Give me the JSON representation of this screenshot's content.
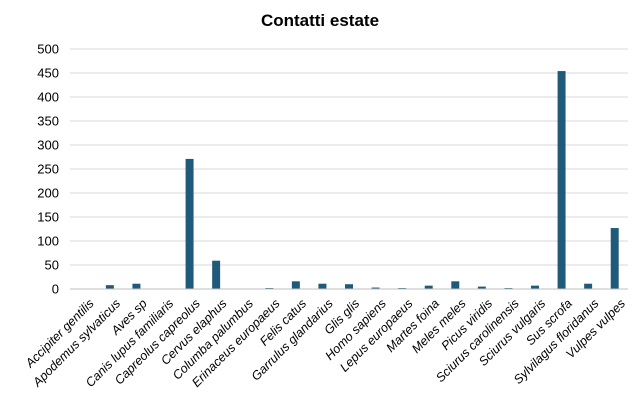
{
  "chart_data": {
    "type": "bar",
    "title": "Contatti estate",
    "xlabel": "",
    "ylabel": "",
    "ylim": [
      0,
      500
    ],
    "yticks": [
      0,
      50,
      100,
      150,
      200,
      250,
      300,
      350,
      400,
      450,
      500
    ],
    "grid": true,
    "legend": "none",
    "bar_color": "#1f5a7a",
    "categories": [
      "Accipiter gentilis",
      "Apodemus sylvaticus",
      "Aves sp",
      "Canis lupus familiaris",
      "Capreolus capreolus",
      "Cervus elaphus",
      "Columba palumbus",
      "Erinaceus europaeus",
      "Felis catus",
      "Garrulus glandarius",
      "Glis glis",
      "Homo sapiens",
      "Lepus europaeus",
      "Martes foina",
      "Meles meles",
      "Picus viridis",
      "Sciurus carolinensis",
      "Sciurus vulgaris",
      "Sus scrofa",
      "Sylvilagus floridanus",
      "Vulpes vulpes"
    ],
    "values": [
      1,
      8,
      11,
      1,
      271,
      59,
      1,
      2,
      16,
      11,
      10,
      3,
      2,
      7,
      16,
      5,
      2,
      7,
      454,
      11,
      127
    ]
  }
}
